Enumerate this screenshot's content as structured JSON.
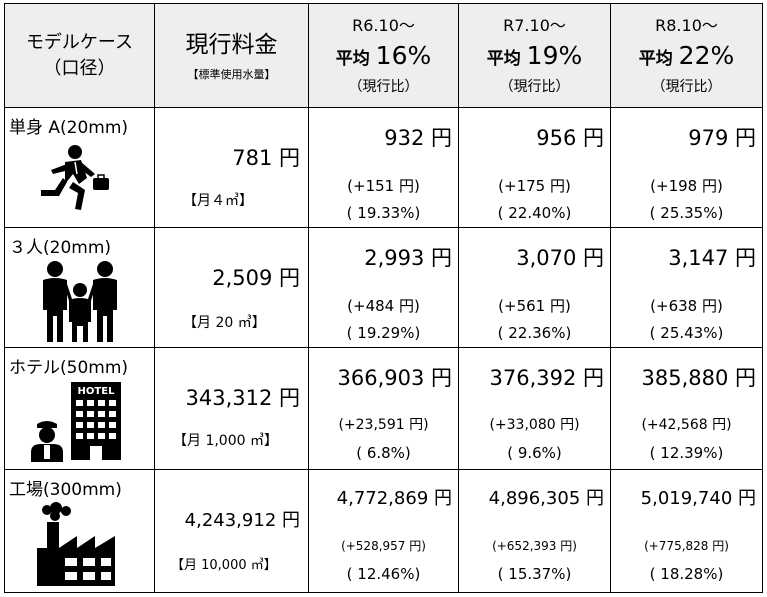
{
  "header": {
    "case_line1": "モデルケース",
    "case_line2": "（口径）",
    "current_title": "現行料金",
    "current_sub": "【標準使用水量】",
    "revisions": [
      {
        "date": "R6.10～",
        "avg_label": "平均",
        "avg_pct": "16%",
        "ratio": "（現行比）"
      },
      {
        "date": "R7.10～",
        "avg_label": "平均",
        "avg_pct": "19%",
        "ratio": "（現行比）"
      },
      {
        "date": "R8.10～",
        "avg_label": "平均",
        "avg_pct": "22%",
        "ratio": "（現行比）"
      }
    ]
  },
  "rows": [
    {
      "label": "単身 A(20mm)",
      "icon": "running-businessman-icon",
      "current": "781 円",
      "usage": "【月４㎥】",
      "revisions": [
        {
          "value": "932 円",
          "diff": "(+151 円)",
          "rate": "( 19.33%)"
        },
        {
          "value": "956 円",
          "diff": "(+175 円)",
          "rate": "( 22.40%)"
        },
        {
          "value": "979 円",
          "diff": "(+198 円)",
          "rate": "( 25.35%)"
        }
      ]
    },
    {
      "label": "３人(20mm)",
      "icon": "family-icon",
      "current": "2,509 円",
      "usage": "【月 20 ㎥】",
      "revisions": [
        {
          "value": "2,993 円",
          "diff": "(+484 円)",
          "rate": "( 19.29%)"
        },
        {
          "value": "3,070 円",
          "diff": "(+561 円)",
          "rate": "( 22.36%)"
        },
        {
          "value": "3,147 円",
          "diff": "(+638 円)",
          "rate": "( 25.43%)"
        }
      ]
    },
    {
      "label": "ホテル(50mm)",
      "icon": "hotel-icon",
      "hotel_sign": "HOTEL",
      "current": "343,312 円",
      "usage": "【月 1,000 ㎥】",
      "revisions": [
        {
          "value": "366,903 円",
          "diff": "(+23,591 円)",
          "rate": "( 6.8%)"
        },
        {
          "value": "376,392 円",
          "diff": "(+33,080 円)",
          "rate": "( 9.6%)"
        },
        {
          "value": "385,880 円",
          "diff": "(+42,568 円)",
          "rate": "( 12.39%)"
        }
      ]
    },
    {
      "label": "工場(300mm)",
      "icon": "factory-icon",
      "current": "4,243,912 円",
      "usage": "【月 10,000 ㎥】",
      "revisions": [
        {
          "value": "4,772,869 円",
          "diff": "(+528,957 円)",
          "rate": "( 12.46%)"
        },
        {
          "value": "4,896,305 円",
          "diff": "(+652,393 円)",
          "rate": "( 15.37%)"
        },
        {
          "value": "5,019,740 円",
          "diff": "(+775,828 円)",
          "rate": "( 18.28%)"
        }
      ]
    }
  ]
}
